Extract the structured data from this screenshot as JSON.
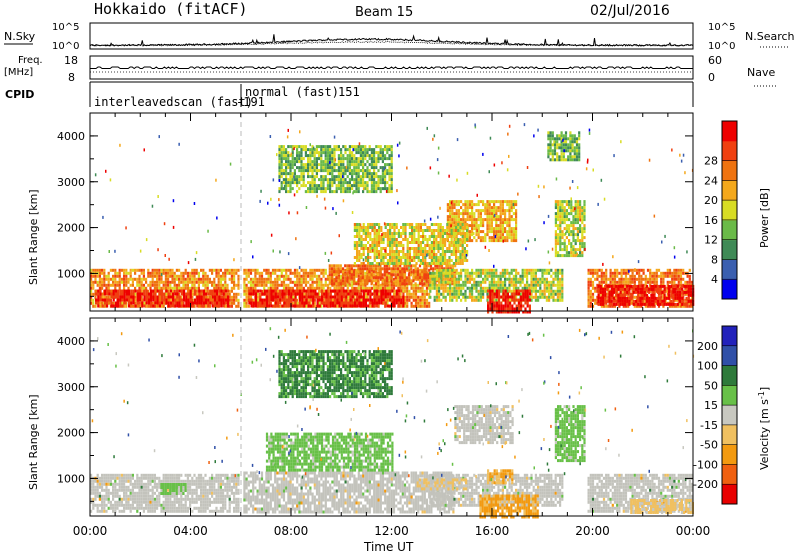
{
  "header": {
    "station": "Hokkaido (fitACF)",
    "beam": "Beam 15",
    "date": "02/Jul/2016"
  },
  "top_panels": {
    "nsky_label": "N.Sky",
    "nsky_ticks": [
      "10^5",
      "10^0"
    ],
    "nsearch_label": "N.Search",
    "nsearch_ticks": [
      "10^5",
      "10^0"
    ],
    "freq_label": "Freq.",
    "freq_unit": "[MHz]",
    "freq_ticks": [
      "18",
      "8"
    ],
    "nave_label": "Nave",
    "nave_ticks": [
      "60",
      "0"
    ],
    "cpid_label": "CPID",
    "cpid_segments": [
      {
        "name": "interleavedscan (fast)",
        "id": "-191",
        "start_hour": 0,
        "end_hour": 6
      },
      {
        "name": "normal (fast)",
        "id": "151",
        "start_hour": 6,
        "end_hour": 24
      }
    ]
  },
  "colors": {
    "power_scale": [
      "#0000ee",
      "#3a5fb0",
      "#3f8a56",
      "#6aba48",
      "#d8dc24",
      "#f4a81c",
      "#ef7310",
      "#f04010",
      "#ee0000"
    ],
    "velocity_scale": [
      "#2222bb",
      "#3050a8",
      "#2e7a3a",
      "#68c048",
      "#c8c8c0",
      "#f0c060",
      "#f39a10",
      "#f06010",
      "#e80000"
    ],
    "ground_scatter": "#c3c3bc"
  },
  "chart_data": [
    {
      "type": "heatmap",
      "panel": "power",
      "ylabel": "Slant Range [km]",
      "ylim": [
        180,
        4500
      ],
      "yticks": [
        "1000",
        "2000",
        "3000",
        "4000"
      ],
      "xlim_hours": [
        0,
        24
      ],
      "colorbar": {
        "label": "Power [dB]",
        "ticks": [
          "4",
          "8",
          "12",
          "16",
          "20",
          "24",
          "28"
        ],
        "range": [
          0,
          30
        ]
      },
      "regions": [
        {
          "x0": 0,
          "x1": 5.9,
          "y0": 250,
          "y1": 1100,
          "value": 20
        },
        {
          "x0": 0.2,
          "x1": 5.5,
          "y0": 300,
          "y1": 650,
          "value": 27
        },
        {
          "x0": 6.1,
          "x1": 13.5,
          "y0": 250,
          "y1": 1100,
          "value": 20
        },
        {
          "x0": 6.3,
          "x1": 12.5,
          "y0": 300,
          "y1": 650,
          "value": 28
        },
        {
          "x0": 9.5,
          "x1": 14.5,
          "y0": 800,
          "y1": 1200,
          "value": 22
        },
        {
          "x0": 13.5,
          "x1": 18.8,
          "y0": 400,
          "y1": 1100,
          "value": 14
        },
        {
          "x0": 14.2,
          "x1": 17,
          "y0": 1700,
          "y1": 2600,
          "value": 18
        },
        {
          "x0": 15.8,
          "x1": 17.5,
          "y0": 180,
          "y1": 650,
          "value": 28
        },
        {
          "x0": 10.5,
          "x1": 15,
          "y0": 1200,
          "y1": 2100,
          "value": 16
        },
        {
          "x0": 19.8,
          "x1": 24,
          "y0": 250,
          "y1": 1100,
          "value": 22
        },
        {
          "x0": 20.2,
          "x1": 24,
          "y0": 300,
          "y1": 750,
          "value": 28
        },
        {
          "x0": 18.5,
          "x1": 19.7,
          "y0": 1400,
          "y1": 2600,
          "value": 14
        },
        {
          "x0": 7.5,
          "x1": 12,
          "y0": 2800,
          "y1": 3800,
          "value": 12
        },
        {
          "x0": 18.2,
          "x1": 19.5,
          "y0": 3500,
          "y1": 4100,
          "value": 12
        }
      ]
    },
    {
      "type": "heatmap",
      "panel": "velocity",
      "ylabel": "Slant Range [km]",
      "ylim": [
        180,
        4500
      ],
      "yticks": [
        "1000",
        "2000",
        "3000",
        "4000"
      ],
      "xlabel": "Time UT",
      "xticks": [
        "00:00",
        "04:00",
        "08:00",
        "12:00",
        "16:00",
        "20:00",
        "00:00"
      ],
      "xlim_hours": [
        0,
        24
      ],
      "colorbar": {
        "label": "Velocity [m s",
        "unit_sup": "-1",
        "ticks": [
          "200",
          "100",
          "50",
          "15",
          "-15",
          "-50",
          "-100",
          "-200"
        ],
        "range": [
          -250,
          250
        ]
      },
      "regions": [
        {
          "x0": 0,
          "x1": 5.9,
          "y0": 250,
          "y1": 1100,
          "value": 0,
          "ground": true
        },
        {
          "x0": 6.1,
          "x1": 14.5,
          "y0": 250,
          "y1": 1150,
          "value": 0,
          "ground": true
        },
        {
          "x0": 13.5,
          "x1": 18.8,
          "y0": 400,
          "y1": 1100,
          "value": 0,
          "ground": true
        },
        {
          "x0": 19.8,
          "x1": 24,
          "y0": 250,
          "y1": 1100,
          "value": 0,
          "ground": true
        },
        {
          "x0": 14.5,
          "x1": 16.8,
          "y0": 1800,
          "y1": 2600,
          "value": 0,
          "ground": true
        },
        {
          "x0": 15.5,
          "x1": 17.8,
          "y0": 180,
          "y1": 650,
          "value": -60
        },
        {
          "x0": 15.8,
          "x1": 16.8,
          "y0": 900,
          "y1": 1200,
          "value": -50
        },
        {
          "x0": 21.5,
          "x1": 24,
          "y0": 250,
          "y1": 550,
          "value": -25
        },
        {
          "x0": 13.0,
          "x1": 15.0,
          "y0": 800,
          "y1": 1000,
          "value": -25
        },
        {
          "x0": 2.8,
          "x1": 3.8,
          "y0": 700,
          "y1": 900,
          "value": 30
        },
        {
          "x0": 7,
          "x1": 12,
          "y0": 1200,
          "y1": 2000,
          "value": 30
        },
        {
          "x0": 18.5,
          "x1": 19.7,
          "y0": 1400,
          "y1": 2600,
          "value": 30
        },
        {
          "x0": 7.5,
          "x1": 12,
          "y0": 2800,
          "y1": 3800,
          "value": 60
        }
      ]
    }
  ]
}
